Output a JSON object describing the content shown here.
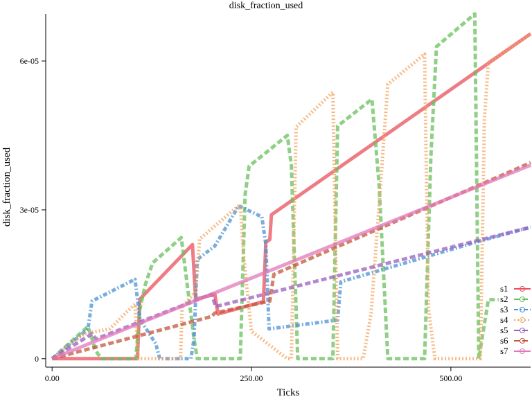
{
  "chart_data": {
    "type": "line",
    "title": "disk_fraction_used",
    "x_label": "Ticks",
    "y_label": "disk_fraction_used",
    "xlim": [
      -8,
      600
    ],
    "ylim": [
      -1.7e-06,
      6.95e-05
    ],
    "xticks": [
      {
        "value": 0,
        "label": "0.00"
      },
      {
        "value": 250,
        "label": "250.00"
      },
      {
        "value": 500,
        "label": "500.00"
      }
    ],
    "yticks": [
      0,
      {
        "value": 3e-05,
        "label": "3e-05"
      },
      {
        "value": 6e-05,
        "label": "6e-05"
      }
    ],
    "legend": "lower right",
    "series": [
      {
        "name": "s1",
        "color": "#e8505b",
        "line_style": "solid",
        "x": [
          0,
          100,
          107,
          110,
          176,
          180,
          204,
          208,
          265,
          268,
          273,
          275,
          600
        ],
        "values": [
          0,
          0,
          0,
          1.2e-05,
          2.3e-05,
          1.2e-05,
          1.3e-05,
          9e-06,
          1.15e-05,
          2.35e-05,
          2.4e-05,
          2.9e-05,
          6.55e-05
        ]
      },
      {
        "name": "s2",
        "color": "#6abf5e",
        "line_style": "dashed",
        "x": [
          0,
          45,
          55,
          62,
          105,
          110,
          117,
          126,
          162,
          178,
          182,
          185,
          236,
          242,
          247,
          295,
          300,
          308,
          352,
          358,
          401,
          410,
          421,
          467,
          475,
          482,
          530,
          535,
          547,
          560
        ],
        "values": [
          0,
          6.5e-06,
          1.5e-06,
          0,
          0,
          1e-05,
          1.5e-05,
          1.93e-05,
          2.44e-05,
          4e-06,
          0,
          0,
          0,
          3.3e-05,
          3.88e-05,
          4.5e-05,
          3.9e-05,
          0,
          0,
          4.69e-05,
          5.23e-05,
          3.5e-05,
          0,
          0,
          4.1e-05,
          6.29e-05,
          6.95e-05,
          0,
          1.19e-05,
          1.19e-05
        ]
      },
      {
        "name": "s3",
        "color": "#4c92d4",
        "line_style": "dashdot",
        "x": [
          0,
          45,
          50,
          104,
          110,
          130,
          135,
          174,
          178,
          182,
          204,
          234,
          263,
          268,
          272,
          358,
          362,
          532,
          600
        ],
        "values": [
          0,
          6e-06,
          1.16e-05,
          1.6e-05,
          8e-06,
          3e-06,
          0,
          0,
          4e-06,
          2e-05,
          2.27e-05,
          3.08e-05,
          2.86e-05,
          2.3e-05,
          6e-06,
          7.8e-06,
          1.55e-05,
          2.35e-05,
          2.65e-05
        ]
      },
      {
        "name": "s4",
        "color": "#f4a259",
        "line_style": "dotted",
        "x": [
          0,
          40,
          72,
          104,
          108,
          161,
          163,
          180,
          185,
          236,
          240,
          250,
          295,
          300,
          306,
          352,
          358,
          365,
          390,
          400,
          421,
          467,
          472,
          480,
          537,
          542,
          547,
          600
        ],
        "values": [
          0,
          5e-06,
          6e-06,
          1.1e-05,
          0,
          0,
          1.05e-05,
          1.35e-05,
          2.41e-05,
          3.11e-05,
          2.1e-05,
          5.5e-06,
          0,
          0,
          4.67e-05,
          5.37e-05,
          0,
          0,
          0,
          9e-06,
          5.53e-05,
          6.14e-05,
          1e-05,
          0,
          0,
          4.8e-05,
          5.97e-05,
          6.55e-05
        ]
      },
      {
        "name": "s5",
        "color": "#9a5fbf",
        "line_style": "dashed",
        "x": [
          0,
          50,
          55,
          200,
          205,
          600
        ],
        "values": [
          0,
          5e-06,
          4e-06,
          1.3e-05,
          1.05e-05,
          2.65e-05
        ]
      },
      {
        "name": "s6",
        "color": "#c4563b",
        "line_style": "dashed",
        "x": [
          0,
          200,
          204,
          273,
          278,
          600
        ],
        "values": [
          0,
          8.5e-06,
          9.2e-06,
          1.16e-05,
          1.7e-05,
          3.95e-05
        ]
      },
      {
        "name": "s7",
        "color": "#e07ab8",
        "line_style": "solid",
        "x": [
          0,
          600
        ],
        "values": [
          0,
          3.9e-05
        ]
      }
    ]
  }
}
